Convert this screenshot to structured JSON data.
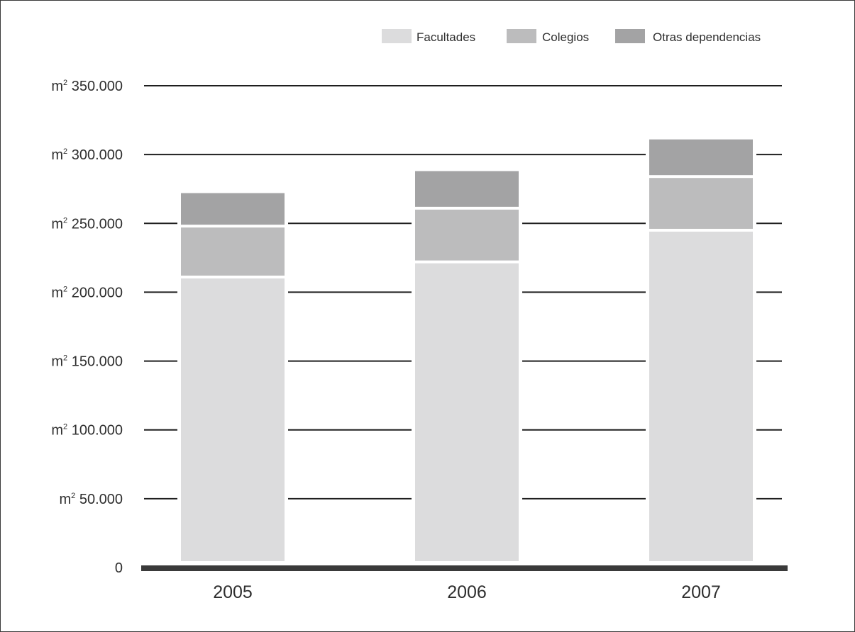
{
  "chart_data": {
    "type": "bar",
    "stacked": true,
    "categories": [
      "2005",
      "2006",
      "2007"
    ],
    "series": [
      {
        "name": "Facultades",
        "color": "#dcdcdd",
        "values": [
          210000,
          221000,
          244000
        ]
      },
      {
        "name": "Colegios",
        "color": "#bcbcbd",
        "values": [
          37000,
          39000,
          39000
        ]
      },
      {
        "name": "Otras dependencias",
        "color": "#a3a3a4",
        "values": [
          25000,
          28000,
          28000
        ]
      }
    ],
    "ylim": [
      0,
      350000
    ],
    "yticks": [
      {
        "value": 0,
        "prefix": "",
        "sup": "",
        "number": "0"
      },
      {
        "value": 50000,
        "prefix": "m",
        "sup": "2",
        "number": " 50.000"
      },
      {
        "value": 100000,
        "prefix": "m",
        "sup": "2",
        "number": " 100.000"
      },
      {
        "value": 150000,
        "prefix": "m",
        "sup": "2",
        "number": " 150.000"
      },
      {
        "value": 200000,
        "prefix": "m",
        "sup": "2",
        "number": " 200.000"
      },
      {
        "value": 250000,
        "prefix": "m",
        "sup": "2",
        "number": " 250.000"
      },
      {
        "value": 300000,
        "prefix": "m",
        "sup": "2",
        "number": " 300.000"
      },
      {
        "value": 350000,
        "prefix": "m",
        "sup": "2",
        "number": " 350.000"
      }
    ],
    "grid": true,
    "legend_position": "top-right",
    "title": "",
    "xlabel": "",
    "ylabel": ""
  }
}
